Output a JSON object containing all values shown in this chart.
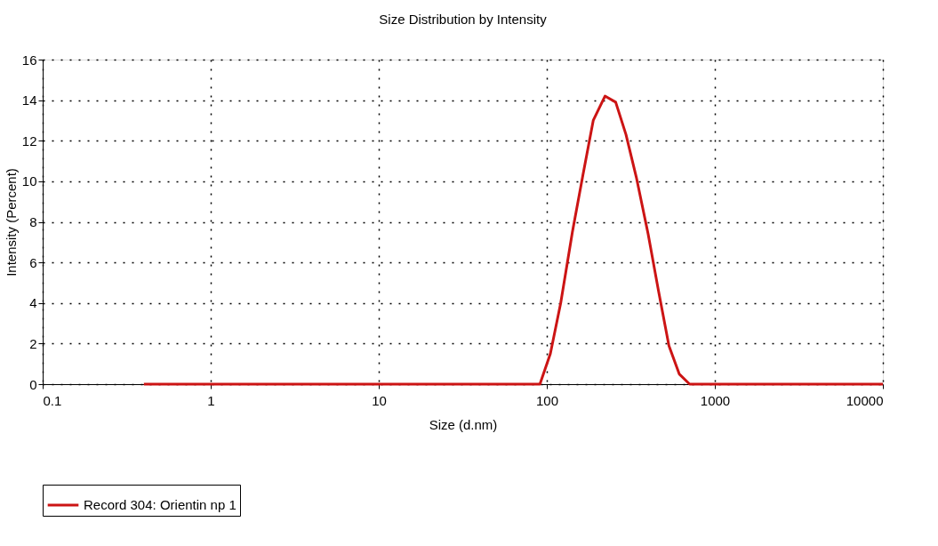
{
  "chart_data": {
    "type": "line",
    "title": "Size Distribution by Intensity",
    "xlabel": "Size (d.nm)",
    "ylabel": "Intensity (Percent)",
    "log": "x",
    "xlim": [
      0.1,
      10000
    ],
    "xticks": [
      0.1,
      1,
      10,
      100,
      1000,
      10000
    ],
    "ylim": [
      0,
      16
    ],
    "yticks": [
      0,
      2,
      4,
      6,
      8,
      10,
      12,
      14,
      16
    ],
    "grid": true,
    "legend": "bottom",
    "line_style": "solid",
    "marker": "none",
    "series": [
      {
        "name": "Record 304: Orientin np 1",
        "color": "#cc1414",
        "x": [
          0.4,
          91,
          105,
          121,
          142,
          164,
          189,
          222,
          257,
          296,
          341,
          401,
          462,
          533,
          614,
          708,
          10000
        ],
        "values": [
          0,
          0,
          1.5,
          4.0,
          7.5,
          10.3,
          13.0,
          14.2,
          13.9,
          12.3,
          10.2,
          7.4,
          4.6,
          1.9,
          0.5,
          0,
          0
        ]
      }
    ]
  }
}
